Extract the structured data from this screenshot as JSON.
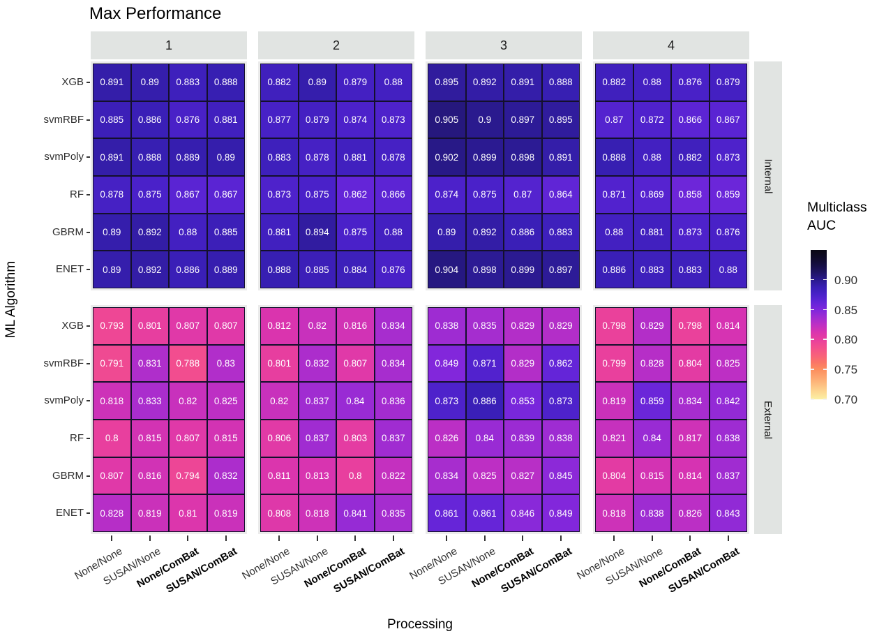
{
  "title": "Max Performance",
  "x_title": "Processing",
  "y_title": "ML Algorithm",
  "legend": {
    "title_line1": "Multiclass",
    "title_line2": "AUC",
    "tick_labels": [
      "0.90",
      "0.85",
      "0.80",
      "0.75",
      "0.70"
    ],
    "tick_values": [
      0.9,
      0.85,
      0.8,
      0.75,
      0.7
    ]
  },
  "chart_data": {
    "type": "heatmap",
    "title": "Max Performance",
    "xlabel": "Processing",
    "ylabel": "ML Algorithm",
    "legend_title": "Multiclass AUC",
    "facet_cols": [
      "1",
      "2",
      "3",
      "4"
    ],
    "facet_rows": [
      "Internal",
      "External"
    ],
    "y_categories": [
      "XGB",
      "svmRBF",
      "svmPoly",
      "RF",
      "GBRM",
      "ENET"
    ],
    "x_categories": [
      "None/None",
      "SUSAN/None",
      "None/ComBat",
      "SUSAN/ComBat"
    ],
    "x_categories_bold": [
      false,
      false,
      true,
      true
    ],
    "color_scale": {
      "domain": [
        0.7,
        0.95
      ],
      "stops": [
        [
          0.7,
          "#fcf0a4"
        ],
        [
          0.7125,
          "#fdd892"
        ],
        [
          0.725,
          "#fdbe80"
        ],
        [
          0.7375,
          "#fda46e"
        ],
        [
          0.75,
          "#fc8e5e"
        ],
        [
          0.7625,
          "#fa7468"
        ],
        [
          0.775,
          "#f75f7d"
        ],
        [
          0.7875,
          "#f24e8e"
        ],
        [
          0.8,
          "#e83f9e"
        ],
        [
          0.8125,
          "#d934af"
        ],
        [
          0.825,
          "#bd2fc4"
        ],
        [
          0.8375,
          "#9f2cd2"
        ],
        [
          0.85,
          "#7f27dc"
        ],
        [
          0.8625,
          "#6325d8"
        ],
        [
          0.875,
          "#4a21c9"
        ],
        [
          0.8875,
          "#381fb4"
        ],
        [
          0.9,
          "#2a1a8e"
        ],
        [
          0.9125,
          "#1f1464"
        ],
        [
          0.925,
          "#150e42"
        ],
        [
          0.9375,
          "#0f0a27"
        ],
        [
          0.95,
          "#0a0814"
        ]
      ]
    },
    "facets": [
      {
        "row": "Internal",
        "col": "1",
        "values": [
          [
            0.891,
            0.89,
            0.883,
            0.888
          ],
          [
            0.885,
            0.886,
            0.876,
            0.881
          ],
          [
            0.891,
            0.888,
            0.889,
            0.89
          ],
          [
            0.878,
            0.875,
            0.867,
            0.867
          ],
          [
            0.89,
            0.892,
            0.88,
            0.885
          ],
          [
            0.89,
            0.892,
            0.886,
            0.889
          ]
        ]
      },
      {
        "row": "Internal",
        "col": "2",
        "values": [
          [
            0.882,
            0.89,
            0.879,
            0.88
          ],
          [
            0.877,
            0.879,
            0.874,
            0.873
          ],
          [
            0.883,
            0.878,
            0.881,
            0.878
          ],
          [
            0.873,
            0.875,
            0.862,
            0.866
          ],
          [
            0.881,
            0.894,
            0.875,
            0.88
          ],
          [
            0.888,
            0.885,
            0.884,
            0.876
          ]
        ]
      },
      {
        "row": "Internal",
        "col": "3",
        "values": [
          [
            0.895,
            0.892,
            0.891,
            0.888
          ],
          [
            0.905,
            0.9,
            0.897,
            0.895
          ],
          [
            0.902,
            0.899,
            0.898,
            0.891
          ],
          [
            0.874,
            0.875,
            0.87,
            0.864
          ],
          [
            0.89,
            0.892,
            0.886,
            0.883
          ],
          [
            0.904,
            0.898,
            0.899,
            0.897
          ]
        ]
      },
      {
        "row": "Internal",
        "col": "4",
        "values": [
          [
            0.882,
            0.88,
            0.876,
            0.879
          ],
          [
            0.87,
            0.872,
            0.866,
            0.867
          ],
          [
            0.888,
            0.88,
            0.882,
            0.873
          ],
          [
            0.871,
            0.869,
            0.858,
            0.859
          ],
          [
            0.88,
            0.881,
            0.873,
            0.876
          ],
          [
            0.886,
            0.883,
            0.883,
            0.88
          ]
        ]
      },
      {
        "row": "External",
        "col": "1",
        "values": [
          [
            0.793,
            0.801,
            0.807,
            0.807
          ],
          [
            0.791,
            0.831,
            0.788,
            0.83
          ],
          [
            0.818,
            0.833,
            0.82,
            0.825
          ],
          [
            0.8,
            0.815,
            0.807,
            0.815
          ],
          [
            0.807,
            0.816,
            0.794,
            0.832
          ],
          [
            0.828,
            0.819,
            0.81,
            0.819
          ]
        ]
      },
      {
        "row": "External",
        "col": "2",
        "values": [
          [
            0.812,
            0.82,
            0.816,
            0.834
          ],
          [
            0.801,
            0.832,
            0.807,
            0.834
          ],
          [
            0.82,
            0.837,
            0.84,
            0.836
          ],
          [
            0.806,
            0.837,
            0.803,
            0.837
          ],
          [
            0.811,
            0.813,
            0.8,
            0.822
          ],
          [
            0.808,
            0.818,
            0.841,
            0.835
          ]
        ]
      },
      {
        "row": "External",
        "col": "3",
        "values": [
          [
            0.838,
            0.835,
            0.829,
            0.829
          ],
          [
            0.849,
            0.871,
            0.829,
            0.862
          ],
          [
            0.873,
            0.886,
            0.853,
            0.873
          ],
          [
            0.826,
            0.84,
            0.839,
            0.838
          ],
          [
            0.834,
            0.825,
            0.827,
            0.845
          ],
          [
            0.861,
            0.861,
            0.846,
            0.849
          ]
        ]
      },
      {
        "row": "External",
        "col": "4",
        "values": [
          [
            0.798,
            0.829,
            0.798,
            0.814
          ],
          [
            0.799,
            0.828,
            0.804,
            0.825
          ],
          [
            0.819,
            0.859,
            0.834,
            0.842
          ],
          [
            0.821,
            0.84,
            0.817,
            0.838
          ],
          [
            0.804,
            0.815,
            0.814,
            0.837
          ],
          [
            0.818,
            0.838,
            0.826,
            0.843
          ]
        ]
      }
    ]
  }
}
